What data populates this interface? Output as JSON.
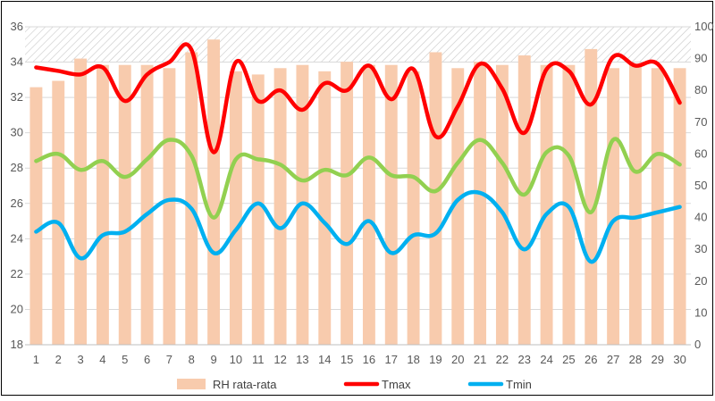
{
  "chart_data": {
    "type": "bar+line",
    "categories": [
      "1",
      "2",
      "3",
      "4",
      "5",
      "6",
      "7",
      "8",
      "9",
      "10",
      "11",
      "12",
      "13",
      "14",
      "15",
      "16",
      "17",
      "18",
      "19",
      "20",
      "21",
      "22",
      "23",
      "24",
      "25",
      "26",
      "27",
      "28",
      "29",
      "30"
    ],
    "y_left": {
      "min": 18,
      "max": 36,
      "ticks": [
        "18",
        "20",
        "22",
        "24",
        "26",
        "28",
        "30",
        "32",
        "34",
        "36"
      ]
    },
    "y_right": {
      "min": 0,
      "max": 100,
      "ticks": [
        "0",
        "10",
        "20",
        "30",
        "40",
        "50",
        "60",
        "70",
        "80",
        "90",
        "100"
      ]
    },
    "band": {
      "from": 34,
      "to": 36,
      "pattern": "diagonal-hatch"
    },
    "grid": "horizontal",
    "legend_position": "bottom",
    "bars": {
      "name": "RH rata-rata",
      "axis": "right",
      "color": "#F8CBAD",
      "values": [
        81,
        83,
        90,
        88,
        88,
        88,
        87,
        92,
        96,
        86,
        85,
        87,
        88,
        86,
        89,
        88,
        88,
        86,
        92,
        87,
        89,
        88,
        91,
        88,
        88,
        93,
        87,
        88,
        87,
        87
      ]
    },
    "lines": [
      {
        "name": "Tmax",
        "axis": "left",
        "color": "#FF0000",
        "values": [
          33.7,
          33.5,
          33.3,
          33.7,
          31.8,
          33.3,
          34.0,
          34.7,
          28.9,
          34.0,
          31.8,
          32.4,
          31.3,
          32.8,
          32.4,
          33.8,
          31.9,
          33.6,
          29.8,
          31.5,
          33.9,
          32.5,
          30.0,
          33.6,
          33.5,
          31.6,
          34.3,
          33.8,
          33.9,
          31.7
        ]
      },
      {
        "name": "",
        "axis": "left",
        "color": "#92D050",
        "values": [
          28.4,
          28.8,
          27.9,
          28.4,
          27.5,
          28.5,
          29.6,
          28.7,
          25.2,
          28.5,
          28.5,
          28.2,
          27.3,
          27.9,
          27.6,
          28.6,
          27.6,
          27.5,
          26.7,
          28.3,
          29.6,
          28.3,
          26.5,
          28.9,
          28.7,
          25.5,
          29.6,
          27.8,
          28.8,
          28.2
        ]
      },
      {
        "name": "Tmin",
        "axis": "left",
        "color": "#00B0F0",
        "values": [
          24.4,
          24.9,
          22.9,
          24.2,
          24.4,
          25.4,
          26.2,
          25.7,
          23.2,
          24.5,
          26.0,
          24.6,
          26.0,
          24.9,
          23.7,
          25.0,
          23.2,
          24.2,
          24.3,
          26.2,
          26.6,
          25.5,
          23.4,
          25.4,
          25.8,
          22.7,
          25.0,
          25.2,
          25.5,
          25.8
        ]
      }
    ]
  }
}
